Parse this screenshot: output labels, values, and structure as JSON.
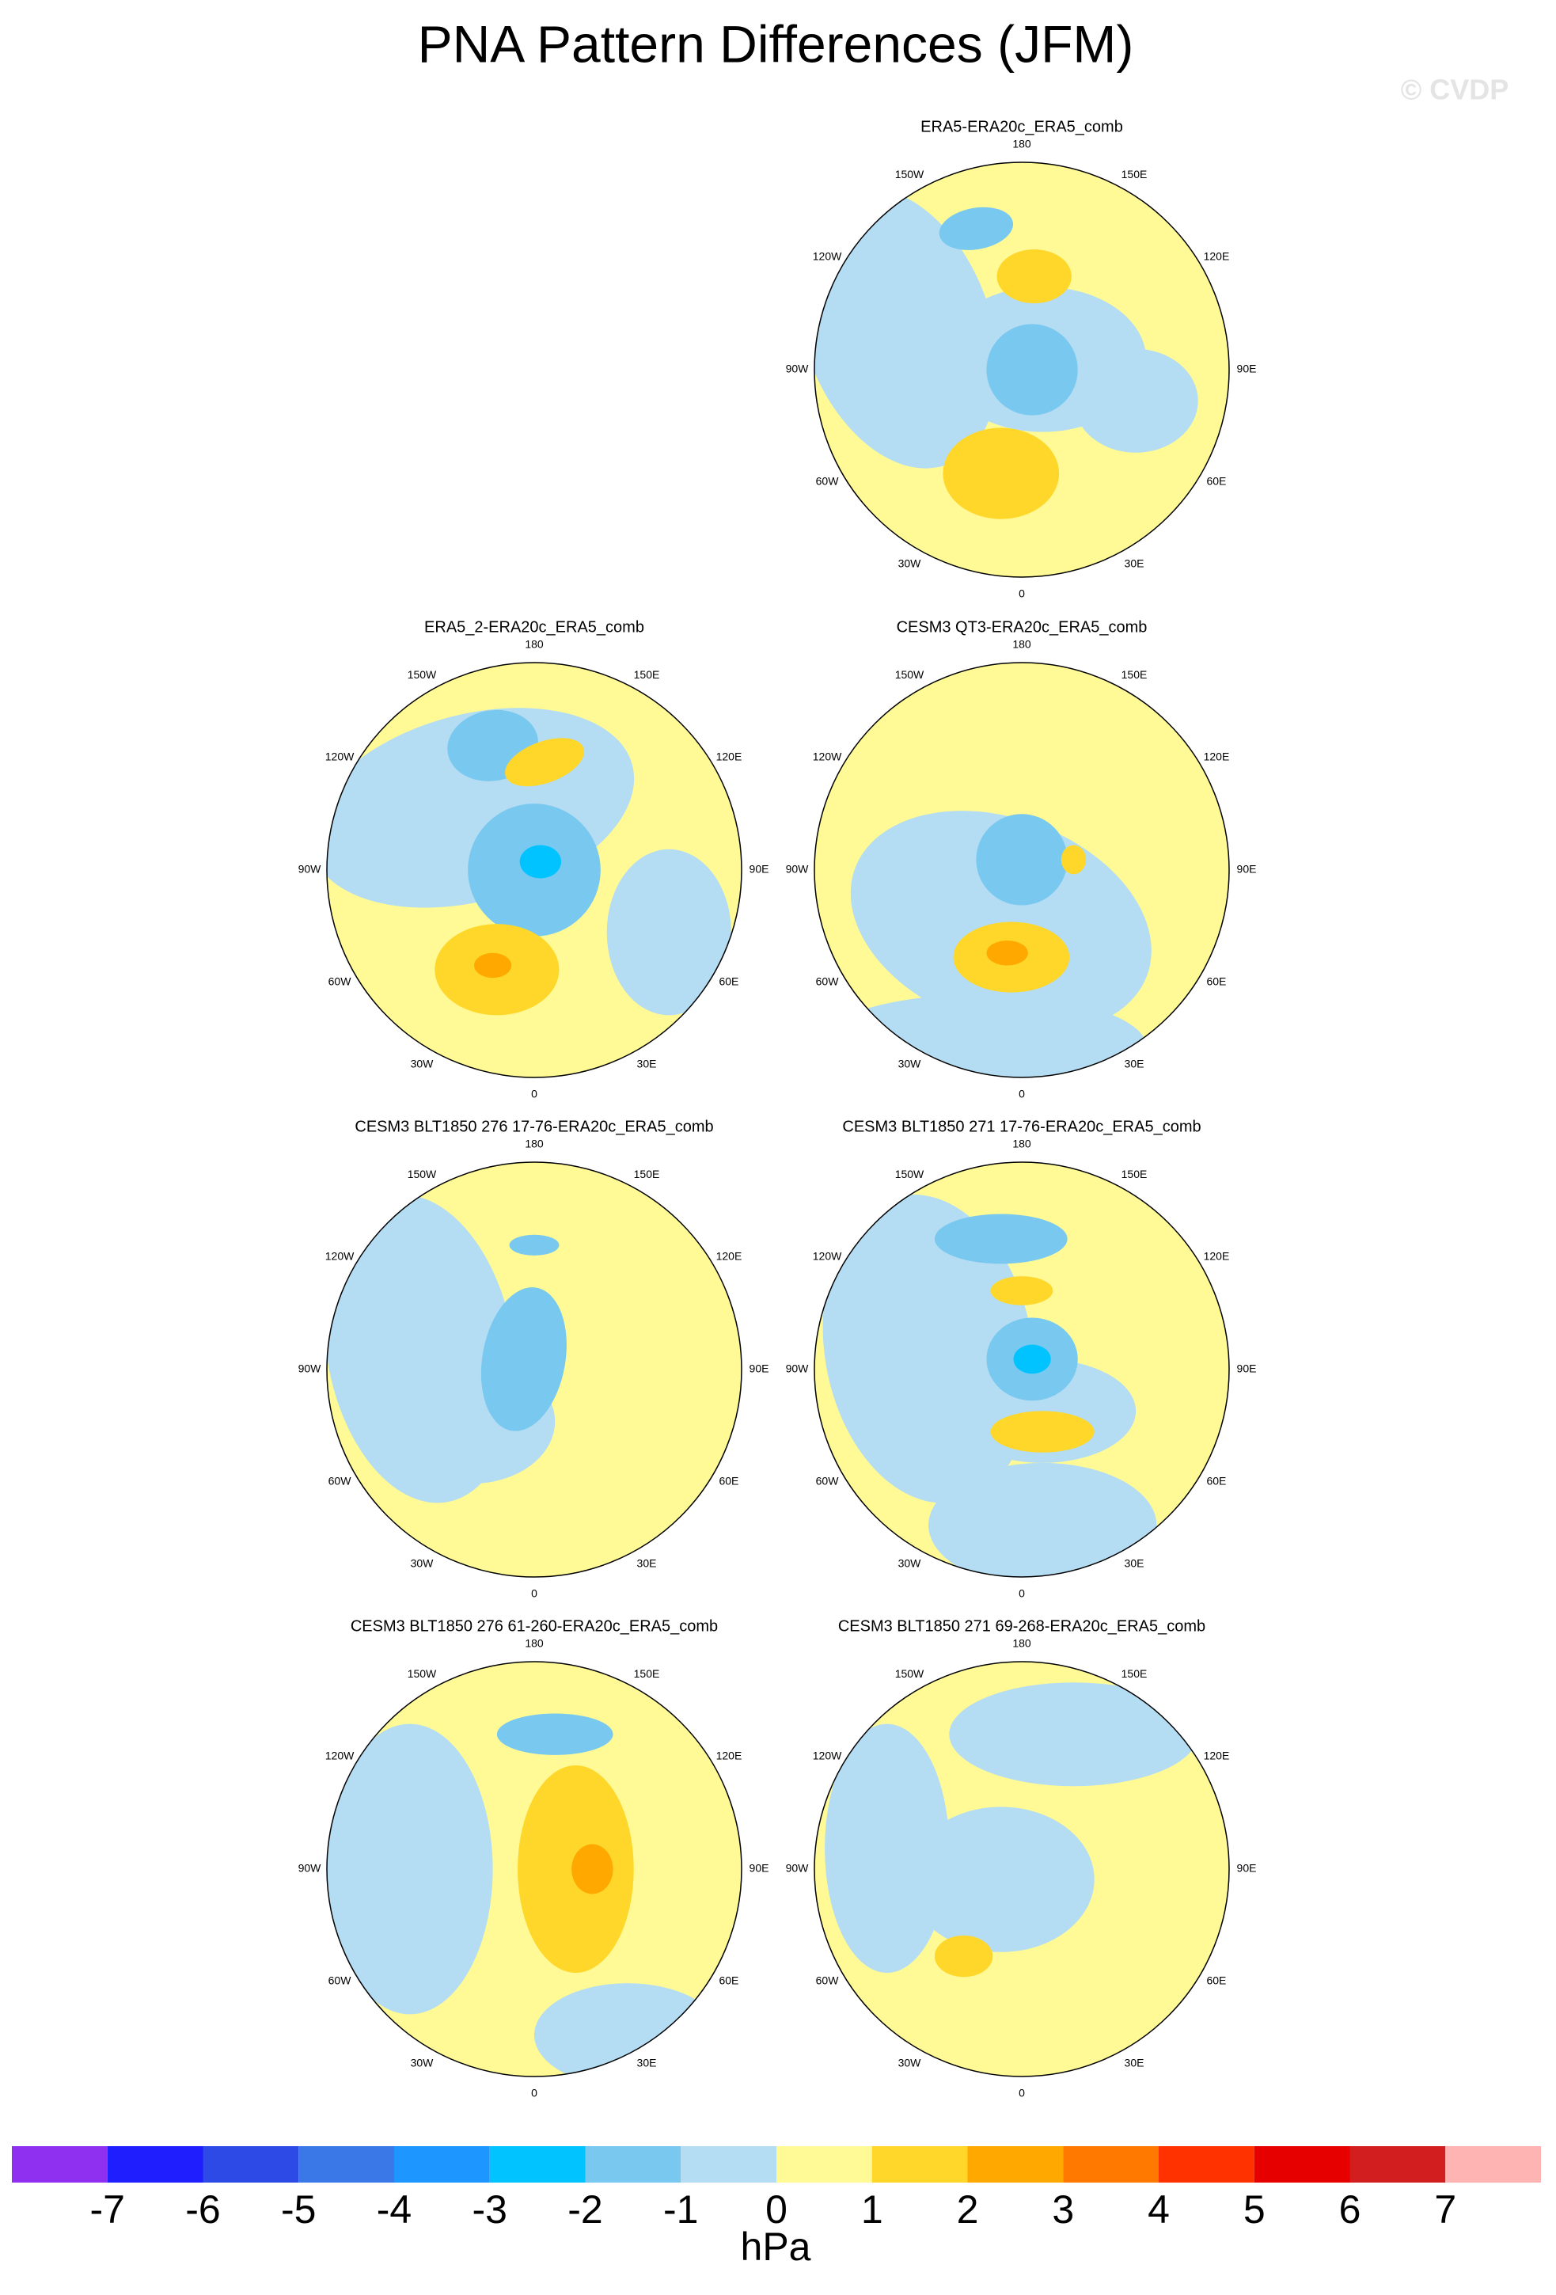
{
  "title": "PNA Pattern Differences (JFM)",
  "watermark": "© CVDP",
  "longitude_labels": [
    "180",
    "150E",
    "120E",
    "90E",
    "60E",
    "30E",
    "0",
    "30W",
    "60W",
    "90W",
    "120W",
    "150W"
  ],
  "panels": [
    {
      "title": "ERA5-ERA20c_ERA5_comb"
    },
    {
      "title": "ERA5_2-ERA20c_ERA5_comb"
    },
    {
      "title": "CESM3 QT3-ERA20c_ERA5_comb"
    },
    {
      "title": "CESM3 BLT1850 276 17-76-ERA20c_ERA5_comb"
    },
    {
      "title": "CESM3 BLT1850 271 17-76-ERA20c_ERA5_comb"
    },
    {
      "title": "CESM3 BLT1850 276 61-260-ERA20c_ERA5_comb"
    },
    {
      "title": "CESM3 BLT1850 271 69-268-ERA20c_ERA5_comb"
    }
  ],
  "colorbar": {
    "ticks": [
      -7,
      -6,
      -5,
      -4,
      -3,
      -2,
      -1,
      0,
      1,
      2,
      3,
      4,
      5,
      6,
      7
    ],
    "colors": [
      "#8f2ff0",
      "#1e1eff",
      "#2e4ae6",
      "#3a78e8",
      "#1e96ff",
      "#00c3ff",
      "#78c8f0",
      "#b4dcf2",
      "#fffa96",
      "#ffd72a",
      "#ffa800",
      "#ff7800",
      "#ff3200",
      "#e60000",
      "#d21e1e",
      "#ffb4b4"
    ],
    "unit": "hPa"
  }
}
